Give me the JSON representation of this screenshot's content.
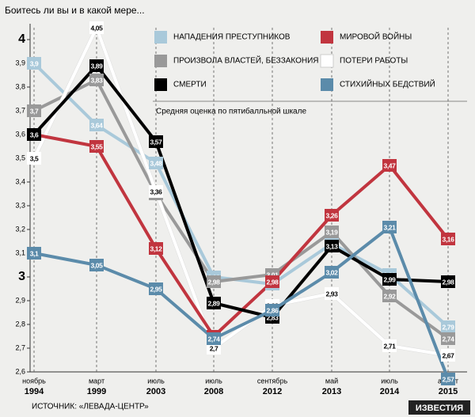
{
  "chart_data": {
    "type": "line",
    "title": "Боитесь ли вы и в какой мере...",
    "note": "Средняя оценка по пятибалльной шкале",
    "source": "ИСТОЧНИК: «ЛЕВАДА-ЦЕНТР»",
    "logo": "ИЗВЕСТИЯ",
    "categories": [
      "ноябрь",
      "март",
      "июль",
      "июль",
      "сентябрь",
      "май",
      "июль",
      "август"
    ],
    "category_years": [
      "1994",
      "1999",
      "2003",
      "2008",
      "2012",
      "2013",
      "2014",
      "2015"
    ],
    "ylim": [
      2.6,
      4.05
    ],
    "yticks": [
      {
        "value": 2.6,
        "label": "2,6"
      },
      {
        "value": 2.7,
        "label": "2,7"
      },
      {
        "value": 2.8,
        "label": "2,8"
      },
      {
        "value": 2.9,
        "label": "2,9"
      },
      3,
      {
        "value": 3.1,
        "label": "3,1"
      },
      {
        "value": 3.2,
        "label": "3,2"
      },
      {
        "value": 3.3,
        "label": "3,3"
      },
      {
        "value": 3.4,
        "label": "3,4"
      },
      {
        "value": 3.5,
        "label": "3,5"
      },
      {
        "value": 3.6,
        "label": "3,6"
      },
      {
        "value": 3.7,
        "label": "3,7"
      },
      {
        "value": 3.8,
        "label": "3,8"
      },
      {
        "value": 3.9,
        "label": "3,9"
      },
      4
    ],
    "series": [
      {
        "name": "НАПАДЕНИЯ ПРЕСТУПНИКОВ",
        "color": "#a9c9da",
        "text_color": "#ffffff",
        "values": [
          3.9,
          3.64,
          3.48,
          3.0,
          2.97,
          3.14,
          3.01,
          2.79
        ],
        "value_labels": [
          "3,9",
          "3,64",
          "3,48",
          "3,00",
          "2,97",
          "3,14",
          "3,01",
          "2,79"
        ]
      },
      {
        "name": "МИРОВОЙ ВОЙНЫ",
        "color": "#c1353f",
        "text_color": "#ffffff",
        "values": [
          3.6,
          3.55,
          3.12,
          2.75,
          2.98,
          3.26,
          3.47,
          3.16
        ],
        "value_labels": [
          "3,6",
          "3,55",
          "3,12",
          "2,75",
          "2,98",
          "3,26",
          "3,47",
          "3,16"
        ]
      },
      {
        "name": "ПРОИЗВОЛА ВЛАСТЕЙ, БЕЗЗАКОНИЯ",
        "color": "#999999",
        "text_color": "#ffffff",
        "values": [
          3.7,
          3.83,
          3.35,
          2.98,
          3.01,
          3.19,
          2.92,
          2.74
        ],
        "value_labels": [
          "3,7",
          "3,83",
          "3,35",
          "2,98",
          "3,01",
          "3,19",
          "2,92",
          "2,74"
        ]
      },
      {
        "name": "ПОТЕРИ РАБОТЫ",
        "color": "#ffffff",
        "text_color": "#000000",
        "values": [
          3.5,
          4.05,
          3.36,
          2.7,
          2.88,
          2.93,
          2.71,
          2.67
        ],
        "value_labels": [
          "3,5",
          "4,05",
          "3,36",
          "2,7",
          "2,88",
          "2,93",
          "2,71",
          "2,67"
        ]
      },
      {
        "name": "СМЕРТИ",
        "color": "#000000",
        "text_color": "#ffffff",
        "values": [
          3.6,
          3.89,
          3.57,
          2.89,
          2.83,
          3.13,
          2.99,
          2.98
        ],
        "value_labels": [
          "3,6",
          "3,89",
          "3,57",
          "2,89",
          "2,83",
          "3,13",
          "2,99",
          "2,98"
        ]
      },
      {
        "name": "СТИХИЙНЫХ БЕДСТВИЙ",
        "color": "#5b8baa",
        "text_color": "#ffffff",
        "values": [
          3.1,
          3.05,
          2.95,
          2.74,
          2.86,
          3.02,
          3.21,
          2.57
        ],
        "value_labels": [
          "3,1",
          "3,05",
          "2,95",
          "2,74",
          "2,86",
          "3,02",
          "3,21",
          "2,57"
        ]
      }
    ]
  }
}
